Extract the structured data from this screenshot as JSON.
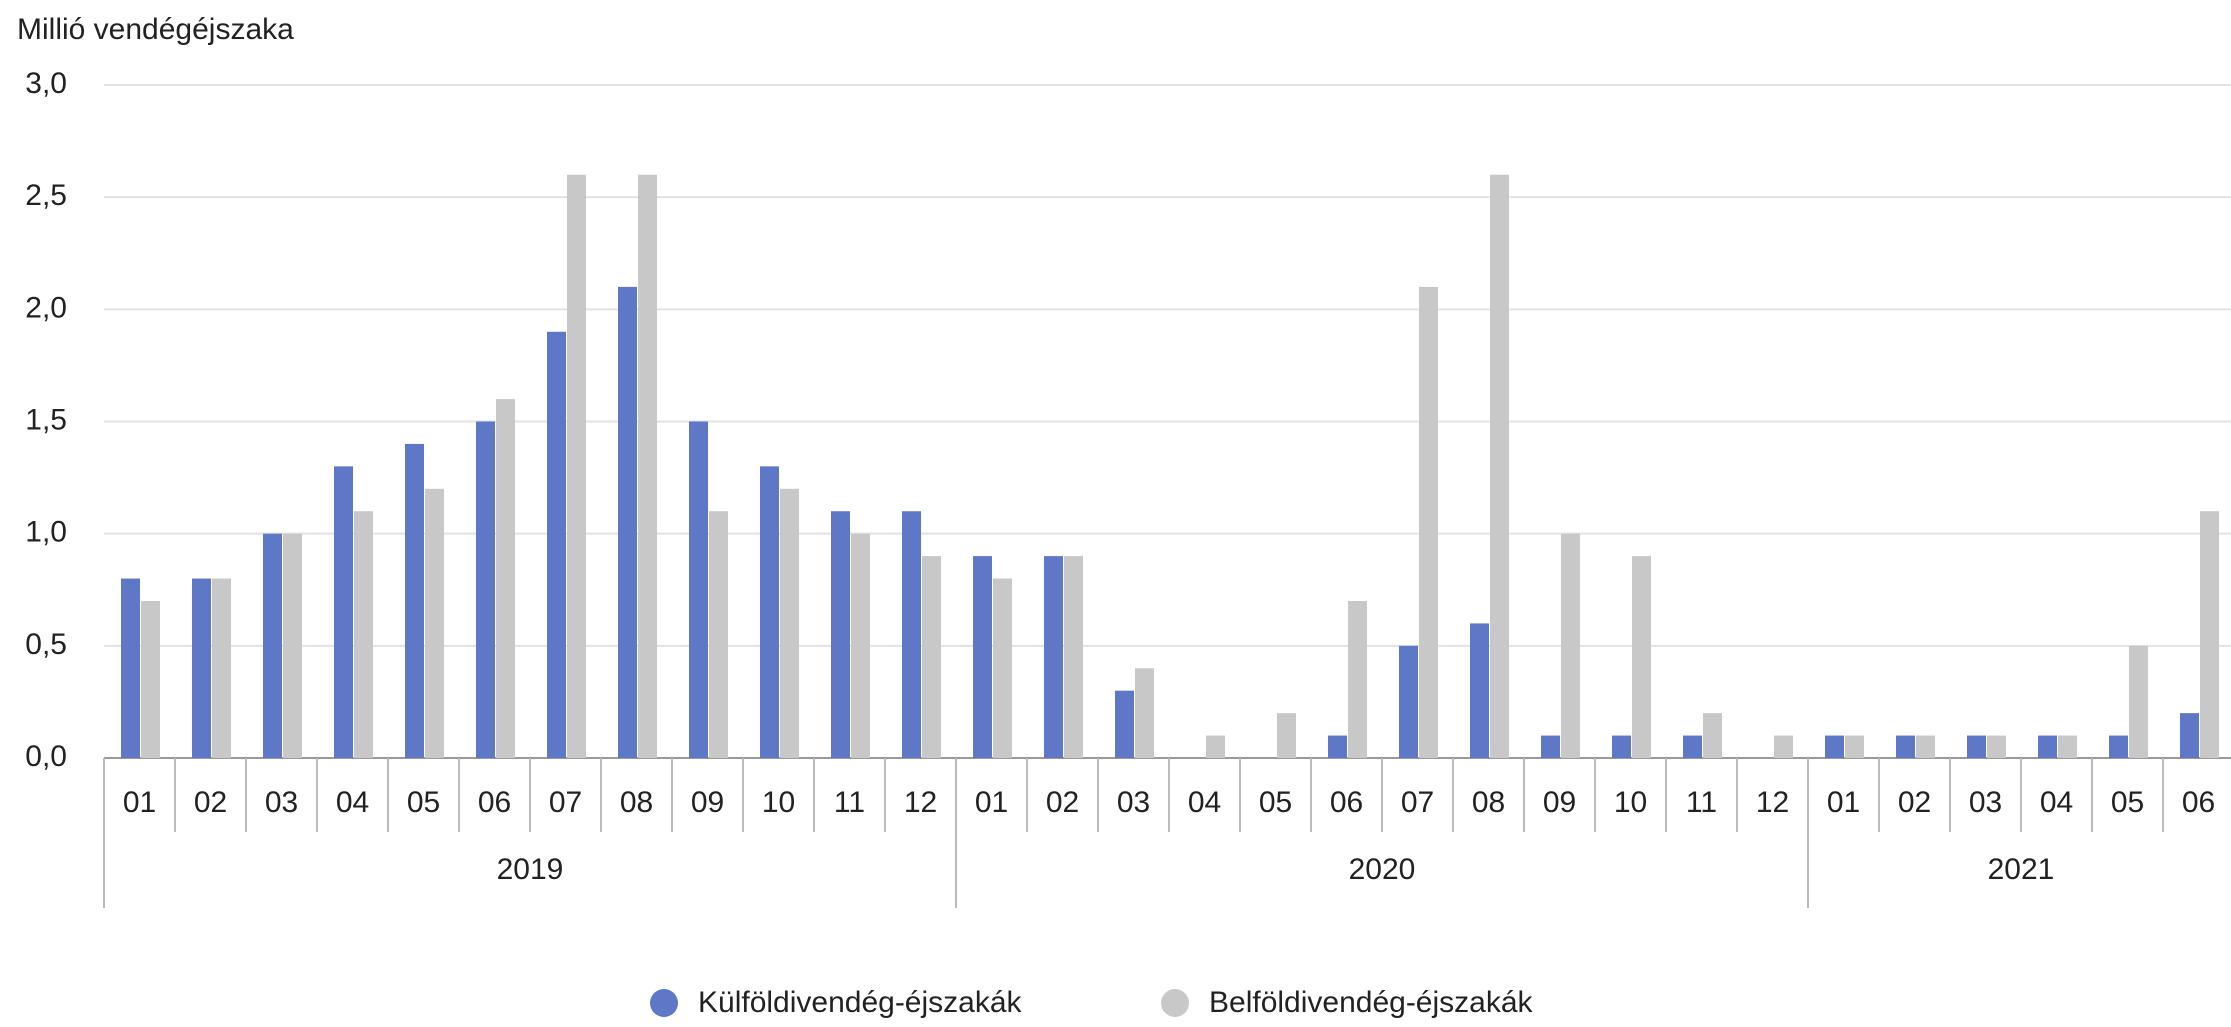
{
  "chart_data": {
    "type": "bar",
    "y_label": "Millió vendégéjszaka",
    "groups": [
      {
        "label": "2019",
        "categories": [
          "01",
          "02",
          "03",
          "04",
          "05",
          "06",
          "07",
          "08",
          "09",
          "10",
          "11",
          "12"
        ]
      },
      {
        "label": "2020",
        "categories": [
          "01",
          "02",
          "03",
          "04",
          "05",
          "06",
          "07",
          "08",
          "09",
          "10",
          "11",
          "12"
        ]
      },
      {
        "label": "2021",
        "categories": [
          "01",
          "02",
          "03",
          "04",
          "05",
          "06"
        ]
      }
    ],
    "series": [
      {
        "name": "Külföldivendég-éjszakák",
        "color": "#5e77c6",
        "values": [
          0.8,
          0.8,
          1.0,
          1.3,
          1.4,
          1.5,
          1.9,
          2.1,
          1.5,
          1.3,
          1.1,
          1.1,
          0.9,
          0.9,
          0.3,
          0,
          0,
          0.1,
          0.5,
          0.6,
          0.1,
          0.1,
          0.1,
          0,
          0.1,
          0.1,
          0.1,
          0.1,
          0.1,
          0.2
        ]
      },
      {
        "name": "Belföldivendég-éjszakák",
        "color": "#c8c8c8",
        "values": [
          0.7,
          0.8,
          1.0,
          1.1,
          1.2,
          1.6,
          2.6,
          2.6,
          1.1,
          1.2,
          1.0,
          0.9,
          0.8,
          0.9,
          0.4,
          0.1,
          0.2,
          0.7,
          2.1,
          2.6,
          1.0,
          0.9,
          0.2,
          0.1,
          0.1,
          0.1,
          0.1,
          0.1,
          0.5,
          1.1
        ]
      }
    ],
    "ylim": [
      0,
      3
    ],
    "yticks": [
      {
        "value": 0,
        "label": "0,0"
      },
      {
        "value": 0.5,
        "label": "0,5"
      },
      {
        "value": 1,
        "label": "1,0"
      },
      {
        "value": 1.5,
        "label": "1,5"
      },
      {
        "value": 2,
        "label": "2,0"
      },
      {
        "value": 2.5,
        "label": "2,5"
      },
      {
        "value": 3,
        "label": "3,0"
      }
    ],
    "grid": true,
    "legend": "bottom"
  }
}
